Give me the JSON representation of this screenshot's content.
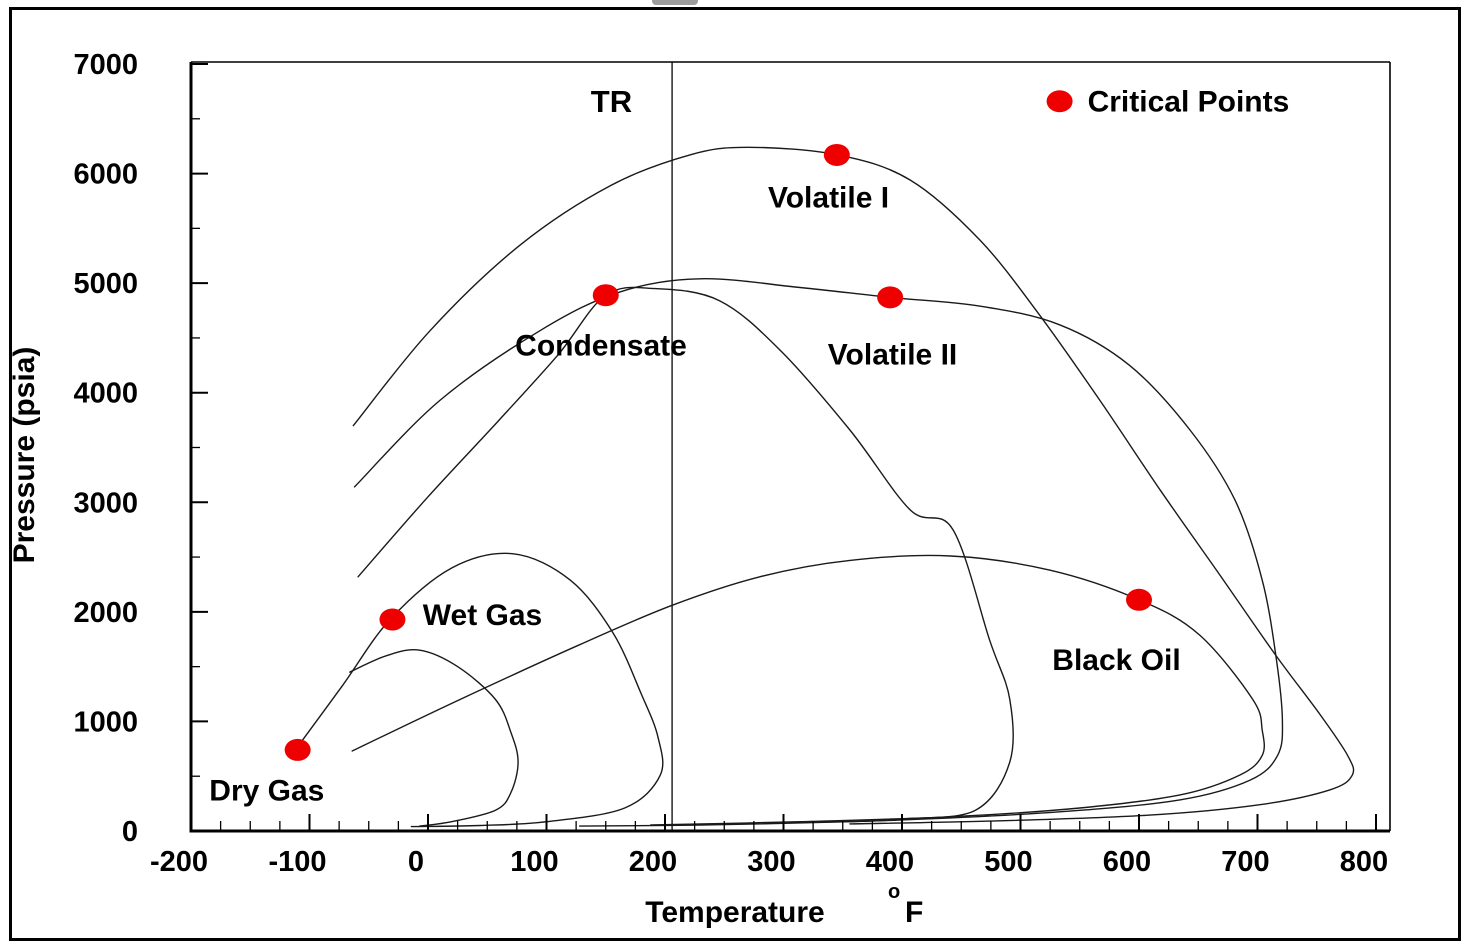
{
  "chart_data": {
    "type": "line",
    "title": "",
    "xlabel": "Temperature",
    "x_unit_degree": "o",
    "x_unit_letter": "F",
    "ylabel": "Pressure (psia)",
    "xlim": [
      -200,
      800
    ],
    "ylim": [
      0,
      7000
    ],
    "x_major_step": 100,
    "x_minor_step": 25,
    "y_major_step": 1000,
    "y_minor_step": 500,
    "grid": false,
    "x_tick_labels": [
      "-200",
      "-100",
      "0",
      "100",
      "200",
      "300",
      "400",
      "500",
      "600",
      "700",
      "800"
    ],
    "y_tick_labels": [
      "0",
      "1000",
      "2000",
      "3000",
      "4000",
      "5000",
      "6000",
      "7000"
    ],
    "colors": {
      "curve": "#1a1a1a",
      "critical_point": "#ee0000",
      "text": "#000000",
      "axis": "#000000"
    },
    "reservoir_temperature_line": {
      "label": "TR",
      "T": 206
    },
    "legend": {
      "label": "Critical Points",
      "marker": "red-dot",
      "T": 533,
      "P": 6660
    },
    "series": [
      {
        "name": "wet-gas-envelope",
        "points": [
          [
            -112,
            740
          ],
          [
            -72,
            1330
          ],
          [
            -32,
            1930
          ],
          [
            20,
            2400
          ],
          [
            72,
            2530
          ],
          [
            120,
            2290
          ],
          [
            156,
            1810
          ],
          [
            180,
            1250
          ],
          [
            194,
            860
          ],
          [
            196,
            510
          ],
          [
            166,
            210
          ],
          [
            100,
            85
          ],
          [
            44,
            50
          ],
          [
            -14,
            40
          ]
        ]
      },
      {
        "name": "dry-gas-envelope",
        "points": [
          [
            -66,
            1450
          ],
          [
            -35,
            1600
          ],
          [
            -7,
            1650
          ],
          [
            25,
            1500
          ],
          [
            57,
            1200
          ],
          [
            70,
            900
          ],
          [
            76,
            630
          ],
          [
            70,
            350
          ],
          [
            57,
            190
          ],
          [
            20,
            85
          ],
          [
            -7,
            45
          ]
        ]
      },
      {
        "name": "condensate-envelope",
        "points": [
          [
            -59,
            2320
          ],
          [
            0,
            3050
          ],
          [
            60,
            3750
          ],
          [
            110,
            4350
          ],
          [
            150,
            4890
          ],
          [
            192,
            4950
          ],
          [
            246,
            4840
          ],
          [
            297,
            4390
          ],
          [
            356,
            3660
          ],
          [
            407,
            2930
          ],
          [
            443,
            2750
          ],
          [
            474,
            1740
          ],
          [
            491,
            1200
          ],
          [
            491,
            630
          ],
          [
            462,
            190
          ],
          [
            400,
            110
          ],
          [
            356,
            85
          ],
          [
            230,
            55
          ],
          [
            128,
            45
          ]
        ]
      },
      {
        "name": "volatile-ii-envelope",
        "points": [
          [
            -62,
            3140
          ],
          [
            10,
            3930
          ],
          [
            95,
            4570
          ],
          [
            162,
            4920
          ],
          [
            230,
            5040
          ],
          [
            314,
            4960
          ],
          [
            390,
            4870
          ],
          [
            466,
            4790
          ],
          [
            533,
            4620
          ],
          [
            592,
            4250
          ],
          [
            643,
            3660
          ],
          [
            681,
            3020
          ],
          [
            704,
            2290
          ],
          [
            716,
            1560
          ],
          [
            721,
            1010
          ],
          [
            717,
            690
          ],
          [
            694,
            465
          ],
          [
            635,
            285
          ],
          [
            533,
            175
          ],
          [
            398,
            100
          ],
          [
            297,
            75
          ]
        ]
      },
      {
        "name": "volatile-i-envelope",
        "points": [
          [
            -63,
            3700
          ],
          [
            2,
            4570
          ],
          [
            78,
            5350
          ],
          [
            154,
            5890
          ],
          [
            221,
            6170
          ],
          [
            270,
            6240
          ],
          [
            346,
            6170
          ],
          [
            407,
            5940
          ],
          [
            466,
            5390
          ],
          [
            516,
            4710
          ],
          [
            567,
            3930
          ],
          [
            618,
            3110
          ],
          [
            668,
            2340
          ],
          [
            715,
            1610
          ],
          [
            753,
            1060
          ],
          [
            776,
            690
          ],
          [
            780,
            510
          ],
          [
            761,
            375
          ],
          [
            702,
            240
          ],
          [
            609,
            145
          ],
          [
            474,
            90
          ],
          [
            356,
            65
          ]
        ]
      },
      {
        "name": "black-oil-envelope",
        "points": [
          [
            -64,
            730
          ],
          [
            27,
            1200
          ],
          [
            128,
            1700
          ],
          [
            206,
            2060
          ],
          [
            280,
            2320
          ],
          [
            356,
            2470
          ],
          [
            441,
            2510
          ],
          [
            525,
            2380
          ],
          [
            600,
            2110
          ],
          [
            651,
            1790
          ],
          [
            696,
            1200
          ],
          [
            704,
            920
          ],
          [
            704,
            690
          ],
          [
            685,
            510
          ],
          [
            635,
            330
          ],
          [
            550,
            210
          ],
          [
            441,
            130
          ],
          [
            314,
            85
          ],
          [
            188,
            55
          ]
        ]
      }
    ],
    "critical_points": [
      {
        "fluid": "Dry Gas",
        "T": -110,
        "P": 740
      },
      {
        "fluid": "Wet Gas",
        "T": -30,
        "P": 1930
      },
      {
        "fluid": "Condensate",
        "T": 150,
        "P": 4890
      },
      {
        "fluid": "Volatile I",
        "T": 345,
        "P": 6170
      },
      {
        "fluid": "Volatile II",
        "T": 390,
        "P": 4870
      },
      {
        "fluid": "Black Oil",
        "T": 600,
        "P": 2110
      }
    ],
    "annotations": [
      {
        "text": "Dry Gas",
        "T": -136,
        "P": 370
      },
      {
        "text": "Wet Gas",
        "T": 46,
        "P": 1970
      },
      {
        "text": "Condensate",
        "T": 146,
        "P": 4430
      },
      {
        "text": "Volatile I",
        "T": 338,
        "P": 5780
      },
      {
        "text": "Volatile II",
        "T": 392,
        "P": 4350
      },
      {
        "text": "Black Oil",
        "T": 581,
        "P": 1560
      }
    ]
  }
}
